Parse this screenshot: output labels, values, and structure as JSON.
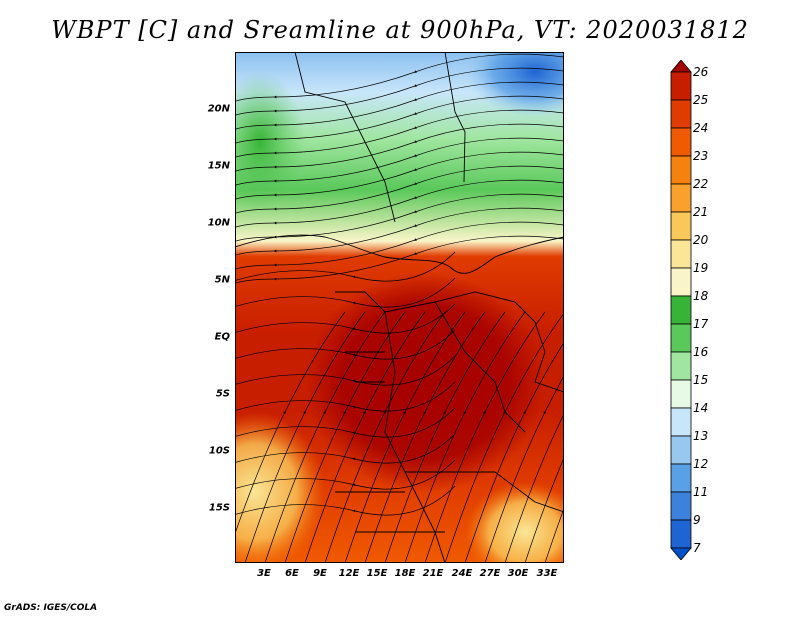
{
  "title": "WBPT [C] and Sreamline at 900hPa, VT: 2020031812",
  "credit": "GrADS: IGES/COLA",
  "map": {
    "variable": "WBPT",
    "units": "C",
    "level": "900hPa",
    "valid_time": "2020031812",
    "overlay": "streamlines",
    "lat_ticks": [
      "20N",
      "15N",
      "10N",
      "5N",
      "EQ",
      "5S",
      "10S",
      "15S"
    ],
    "lon_ticks": [
      "3E",
      "6E",
      "9E",
      "12E",
      "15E",
      "18E",
      "21E",
      "24E",
      "27E",
      "30E",
      "33E"
    ]
  },
  "colorbar": {
    "labels": [
      "26",
      "25",
      "24",
      "23",
      "22",
      "21",
      "20",
      "19",
      "18",
      "17",
      "16",
      "15",
      "14",
      "13",
      "12",
      "11",
      "9",
      "7"
    ],
    "colors": [
      "#a50000",
      "#c81e00",
      "#e03c00",
      "#f05a00",
      "#f5820f",
      "#faa02d",
      "#fac85a",
      "#fae696",
      "#faf5c8",
      "#37b437",
      "#5ac85a",
      "#a0e6a0",
      "#e6fae6",
      "#c8e6fa",
      "#96c8f0",
      "#5aa0e6",
      "#3c82dc",
      "#1e64d2",
      "#0050c8"
    ]
  }
}
